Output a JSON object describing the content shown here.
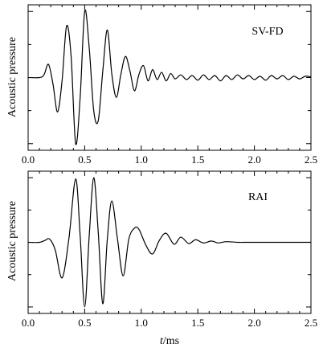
{
  "chart_data": [
    {
      "type": "line",
      "annotation": "SV-FD",
      "ylabel": "Acoustic pressure",
      "xlim": [
        0,
        2.5
      ],
      "ylim": [
        -1.1,
        1.1
      ],
      "xticks": [
        0.0,
        0.5,
        1.0,
        1.5,
        2.0,
        2.5
      ],
      "xtick_labels": [
        "0.0",
        "0.5",
        "1.0",
        "1.5",
        "2.0",
        "2.5"
      ],
      "series": [
        {
          "x": [
            0.0,
            0.1,
            0.14,
            0.18,
            0.22,
            0.26,
            0.3,
            0.34,
            0.38,
            0.42,
            0.46,
            0.5,
            0.54,
            0.58,
            0.62,
            0.66,
            0.7,
            0.74,
            0.78,
            0.82,
            0.86,
            0.9,
            0.94,
            0.98,
            1.02,
            1.06,
            1.1,
            1.14,
            1.18,
            1.22,
            1.26,
            1.3,
            1.35,
            1.4,
            1.45,
            1.5,
            1.55,
            1.6,
            1.65,
            1.7,
            1.75,
            1.8,
            1.85,
            1.9,
            1.95,
            2.0,
            2.05,
            2.1,
            2.15,
            2.2,
            2.25,
            2.3,
            2.35,
            2.4,
            2.45,
            2.5
          ],
          "y": [
            0.0,
            0.0,
            0.04,
            0.2,
            -0.1,
            -0.52,
            -0.05,
            0.78,
            0.32,
            -1.0,
            -0.3,
            1.0,
            0.45,
            -0.5,
            -0.65,
            0.1,
            0.72,
            0.05,
            -0.3,
            0.05,
            0.32,
            0.1,
            -0.2,
            0.05,
            0.18,
            -0.05,
            0.12,
            -0.03,
            0.08,
            -0.05,
            0.06,
            -0.02,
            0.04,
            -0.03,
            0.03,
            -0.04,
            0.04,
            -0.03,
            0.03,
            -0.05,
            0.03,
            -0.03,
            0.04,
            -0.02,
            0.03,
            -0.03,
            0.02,
            -0.04,
            0.03,
            -0.02,
            0.03,
            -0.03,
            0.02,
            -0.02,
            0.02,
            0.01
          ]
        }
      ]
    },
    {
      "type": "line",
      "annotation": "RAI",
      "ylabel": "Acoustic pressure",
      "xlabel": "t/ms",
      "xlim": [
        0,
        2.5
      ],
      "ylim": [
        -1.1,
        1.1
      ],
      "xticks": [
        0.0,
        0.5,
        1.0,
        1.5,
        2.0,
        2.5
      ],
      "xtick_labels": [
        "0.0",
        "0.5",
        "1.0",
        "1.5",
        "2.0",
        "2.5"
      ],
      "series": [
        {
          "x": [
            0.0,
            0.1,
            0.15,
            0.19,
            0.24,
            0.3,
            0.36,
            0.42,
            0.46,
            0.5,
            0.54,
            0.58,
            0.62,
            0.66,
            0.7,
            0.74,
            0.79,
            0.84,
            0.89,
            0.94,
            0.98,
            1.04,
            1.1,
            1.16,
            1.22,
            1.29,
            1.35,
            1.42,
            1.48,
            1.55,
            1.62,
            1.68,
            1.75,
            1.85,
            1.95,
            2.1,
            2.3,
            2.5
          ],
          "y": [
            0.0,
            0.0,
            0.03,
            0.05,
            -0.12,
            -0.55,
            0.05,
            0.98,
            0.1,
            -1.0,
            0.1,
            1.0,
            0.15,
            -0.95,
            0.05,
            0.64,
            0.05,
            -0.52,
            0.05,
            0.22,
            0.2,
            -0.04,
            -0.18,
            0.03,
            0.14,
            -0.03,
            0.08,
            -0.02,
            0.04,
            -0.01,
            0.02,
            -0.01,
            0.01,
            0.0,
            0.0,
            0.0,
            0.0,
            0.0
          ]
        }
      ]
    }
  ]
}
